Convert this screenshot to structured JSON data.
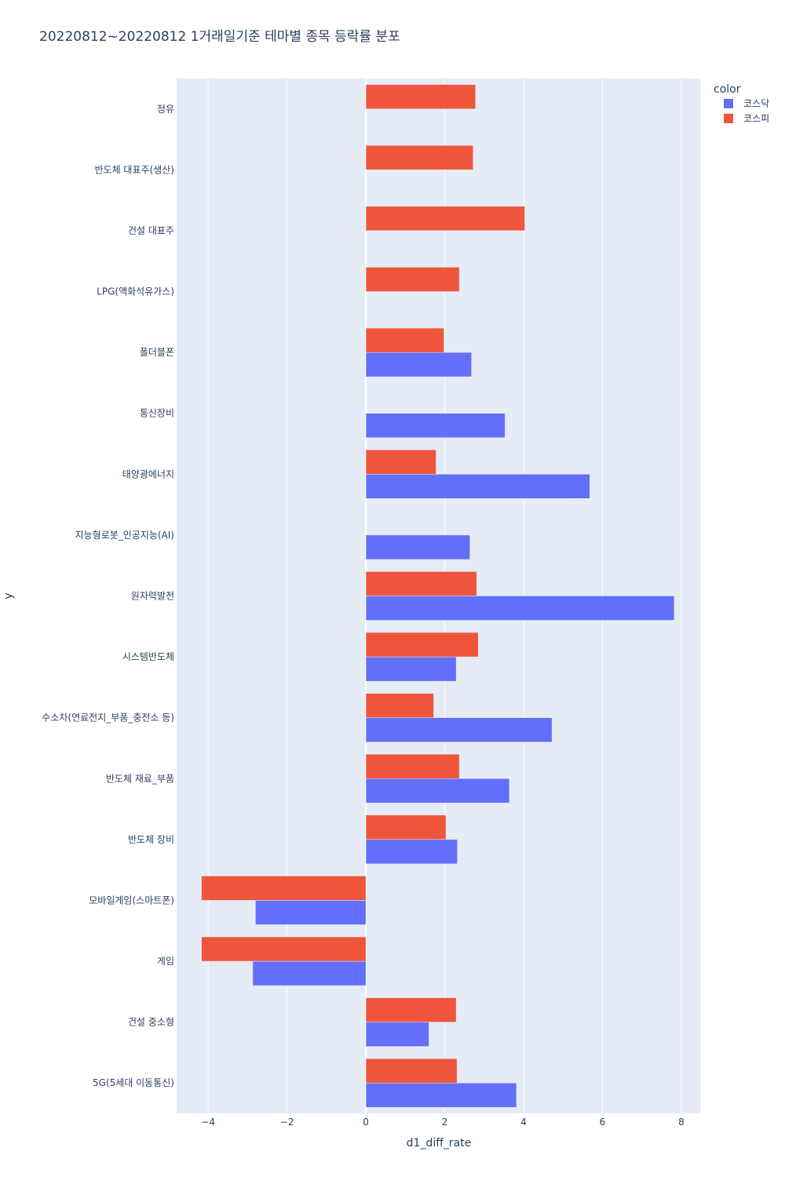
{
  "chart_data": {
    "type": "bar",
    "orientation": "horizontal",
    "barmode": "group",
    "title": "20220812~20220812 1거래일기준 테마별 종목 등락률 분포",
    "xlabel": "d1_diff_rate",
    "ylabel": "y",
    "xlim": [
      -4.8,
      8.5
    ],
    "xticks": [
      -4,
      -2,
      0,
      2,
      4,
      6,
      8
    ],
    "xtick_labels": [
      "−4",
      "−2",
      "0",
      "2",
      "4",
      "6",
      "8"
    ],
    "grid": true,
    "legend": {
      "title": "color",
      "placement": "top-right"
    },
    "categories": [
      "정유",
      "반도체 대표주(생산)",
      "건설 대표주",
      "LPG(액화석유가스)",
      "폴더블폰",
      "통신장비",
      "태양광에너지",
      "지능형로봇_인공지능(AI)",
      "원자력발전",
      "시스템반도체",
      "수소차(연료전지_부품_충전소 등)",
      "반도체 재료_부품",
      "반도체 장비",
      "모바일게임(스마트폰)",
      "게임",
      "건설 중소형",
      "5G(5세대 이동통신)"
    ],
    "series": [
      {
        "name": "코스닥",
        "color": "#636efa",
        "values": [
          null,
          null,
          null,
          null,
          2.68,
          3.53,
          5.68,
          2.64,
          7.82,
          2.29,
          4.72,
          3.64,
          2.32,
          -2.8,
          -2.87,
          1.6,
          3.82
        ]
      },
      {
        "name": "코스피",
        "color": "#ef553b",
        "values": [
          2.78,
          2.72,
          4.03,
          2.37,
          1.98,
          null,
          1.78,
          null,
          2.81,
          2.85,
          1.72,
          2.37,
          2.03,
          -4.17,
          -4.17,
          2.29,
          2.31
        ]
      }
    ]
  }
}
